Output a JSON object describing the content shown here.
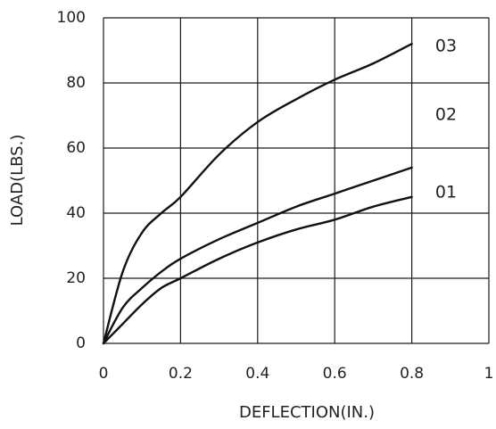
{
  "chart_data": {
    "type": "line",
    "title": "",
    "xlabel": "DEFLECTION(IN.)",
    "ylabel": "LOAD(LBS.)",
    "xlim": [
      0,
      1
    ],
    "ylim": [
      0,
      100
    ],
    "grid": true,
    "x_ticks": [
      "0",
      "0.2",
      "0.4",
      "0.6",
      "0.8",
      "1"
    ],
    "y_ticks": [
      "0",
      "20",
      "40",
      "60",
      "80",
      "100"
    ],
    "series_labels": [
      "03",
      "02",
      "01"
    ],
    "series": [
      {
        "x": [
          0.0,
          0.05,
          0.1,
          0.15,
          0.2,
          0.3,
          0.4,
          0.5,
          0.6,
          0.7,
          0.8
        ],
        "values": [
          0,
          22,
          34,
          40,
          45,
          58,
          68,
          75,
          81,
          86,
          92
        ]
      },
      {
        "x": [
          0.0,
          0.05,
          0.1,
          0.15,
          0.2,
          0.3,
          0.4,
          0.5,
          0.6,
          0.7,
          0.8
        ],
        "values": [
          0,
          11,
          17,
          22,
          26,
          32,
          37,
          42,
          46,
          50,
          54
        ]
      },
      {
        "x": [
          0.0,
          0.05,
          0.1,
          0.15,
          0.2,
          0.3,
          0.4,
          0.5,
          0.6,
          0.7,
          0.8
        ],
        "values": [
          0,
          6,
          12,
          17,
          20,
          26,
          31,
          35,
          38,
          42,
          45
        ]
      }
    ]
  }
}
